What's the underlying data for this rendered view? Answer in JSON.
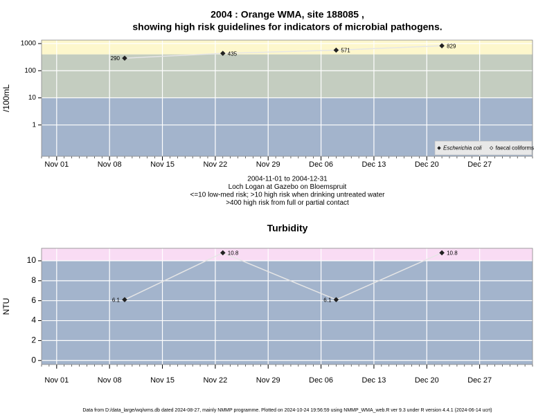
{
  "chart_data": [
    {
      "type": "line",
      "title": [
        "2004 : Orange WMA, site 188085 ,",
        "showing high risk guidelines for indicators of microbial pathogens."
      ],
      "notes": [
        "2004-11-01 to 2004-12-31",
        "Loch Logan at Gazebo on Bloemspruit",
        "<=10 low-med risk; >10 high risk when drinking untreated water",
        ">400 high risk from full or partial contact"
      ],
      "ylabel": "/100mL",
      "log_y": true,
      "ylim": [
        0.07,
        1340
      ],
      "yticks": [
        1,
        10,
        100,
        1000
      ],
      "xlim": [
        "Oct 30",
        "Jan 03"
      ],
      "xticks": [
        "Nov 01",
        "Nov 08",
        "Nov 15",
        "Nov 22",
        "Nov 29",
        "Dec 06",
        "Dec 13",
        "Dec 20",
        "Dec 27"
      ],
      "thresholds": [
        10,
        400
      ],
      "band_colors": [
        "#a3b4cc",
        "#c4cdc0",
        "#fdf7cc"
      ],
      "grid": true,
      "line_color": "#e6e6e6",
      "x": [
        "Nov 10",
        "Nov 23",
        "Dec 08",
        "Dec 22"
      ],
      "series": [
        {
          "name": "Escherichia coli",
          "marker": "filled",
          "font_style": "italic",
          "color": "#222222",
          "values": [
            290,
            435,
            571,
            829
          ]
        },
        {
          "name": "faecal coliforms",
          "marker": "open",
          "font_style": "normal",
          "color": "#222222",
          "values": [
            null,
            null,
            null,
            null
          ]
        }
      ],
      "legend": "bottom right"
    },
    {
      "type": "line",
      "title": [
        "Turbidity"
      ],
      "ylabel": "NTU",
      "log_y": false,
      "ylim": [
        -0.4,
        11.25
      ],
      "yticks": [
        0,
        2,
        4,
        6,
        8,
        10
      ],
      "xlim": [
        "Oct 30",
        "Jan 03"
      ],
      "xticks": [
        "Nov 01",
        "Nov 08",
        "Nov 15",
        "Nov 22",
        "Nov 29",
        "Dec 06",
        "Dec 13",
        "Dec 20",
        "Dec 27"
      ],
      "thresholds": [
        10
      ],
      "band_colors": [
        "#a3b4cc",
        "#f9dcf4"
      ],
      "grid": true,
      "line_color": "#e6e6e6",
      "x": [
        "Nov 10",
        "Nov 23",
        "Dec 08",
        "Dec 22"
      ],
      "series": [
        {
          "name": "Turbidity",
          "marker": "filled",
          "color": "#222222",
          "values": [
            6.1,
            10.8,
            6.1,
            10.8
          ]
        }
      ]
    }
  ],
  "footer": "Data from D:/data_large/wq/wms.db dated 2024-08-27, mainly NMMP programme. Plotted on 2024-10-24 19:56:59 using NMMP_WMA_web.R ver 9.3 under R version 4.4.1 (2024-06-14 ucrt)"
}
